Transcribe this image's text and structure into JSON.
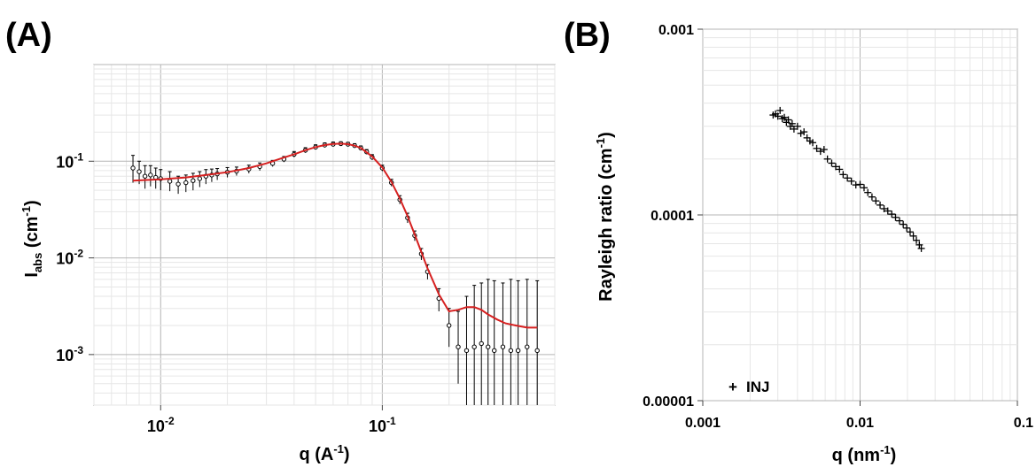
{
  "chart_data": [
    {
      "panel_label": "(A)",
      "type": "scatter",
      "xlabel": "q (A",
      "xlabel_sup": "-1",
      "xlabel_end": ")",
      "ylabel_main": "I",
      "ylabel_sub": "abs",
      "ylabel_unit": " (cm",
      "ylabel_sup": "-1",
      "ylabel_end": ")",
      "x_scale": "log",
      "y_scale": "log",
      "xlim": [
        0.005,
        0.6
      ],
      "ylim": [
        0.0003,
        1
      ],
      "grid": true,
      "x_ticks": [
        {
          "value": 0.01,
          "base": "10",
          "exp": "-2"
        },
        {
          "value": 0.1,
          "base": "10",
          "exp": "-1"
        }
      ],
      "y_ticks": [
        {
          "value": 0.1,
          "base": "10",
          "exp": "-1"
        },
        {
          "value": 0.01,
          "base": "10",
          "exp": "-2"
        },
        {
          "value": 0.001,
          "base": "10",
          "exp": "-3"
        }
      ],
      "series": [
        {
          "kind": "data-with-errorbars",
          "color": "#000000",
          "x": [
            0.0075,
            0.008,
            0.0085,
            0.009,
            0.0095,
            0.01,
            0.011,
            0.012,
            0.013,
            0.014,
            0.015,
            0.016,
            0.017,
            0.018,
            0.02,
            0.022,
            0.025,
            0.028,
            0.032,
            0.036,
            0.04,
            0.045,
            0.05,
            0.055,
            0.06,
            0.065,
            0.07,
            0.075,
            0.08,
            0.085,
            0.09,
            0.1,
            0.11,
            0.12,
            0.13,
            0.14,
            0.15,
            0.16,
            0.18,
            0.2,
            0.22,
            0.24,
            0.26,
            0.28,
            0.3,
            0.32,
            0.35,
            0.38,
            0.41,
            0.45,
            0.5
          ],
          "y": [
            0.085,
            0.078,
            0.07,
            0.072,
            0.068,
            0.066,
            0.062,
            0.058,
            0.06,
            0.063,
            0.066,
            0.07,
            0.072,
            0.074,
            0.077,
            0.079,
            0.083,
            0.088,
            0.095,
            0.105,
            0.118,
            0.13,
            0.14,
            0.147,
            0.15,
            0.152,
            0.15,
            0.145,
            0.137,
            0.125,
            0.11,
            0.085,
            0.06,
            0.04,
            0.026,
            0.017,
            0.011,
            0.0072,
            0.0038,
            0.002,
            0.0012,
            0.0011,
            0.0012,
            0.0013,
            0.0012,
            0.0011,
            0.0012,
            0.0011,
            0.0011,
            0.0012,
            0.0011
          ],
          "err_lo": [
            0.06,
            0.058,
            0.052,
            0.055,
            0.052,
            0.05,
            0.049,
            0.046,
            0.048,
            0.05,
            0.054,
            0.058,
            0.061,
            0.064,
            0.068,
            0.071,
            0.075,
            0.08,
            0.088,
            0.098,
            0.11,
            0.122,
            0.132,
            0.139,
            0.142,
            0.145,
            0.143,
            0.138,
            0.13,
            0.118,
            0.103,
            0.079,
            0.055,
            0.036,
            0.023,
            0.015,
            0.0095,
            0.006,
            0.0028,
            0.0012,
            0.0005,
            0.0003,
            0.0003,
            0.0003,
            0.0003,
            0.0003,
            0.0003,
            0.0003,
            0.0003,
            0.0003,
            0.0003
          ],
          "err_hi": [
            0.115,
            0.1,
            0.09,
            0.09,
            0.085,
            0.082,
            0.078,
            0.07,
            0.072,
            0.075,
            0.078,
            0.082,
            0.083,
            0.084,
            0.086,
            0.087,
            0.091,
            0.096,
            0.102,
            0.112,
            0.126,
            0.138,
            0.148,
            0.155,
            0.158,
            0.159,
            0.157,
            0.152,
            0.144,
            0.132,
            0.117,
            0.091,
            0.065,
            0.044,
            0.029,
            0.019,
            0.0125,
            0.0085,
            0.0048,
            0.003,
            0.0028,
            0.004,
            0.0052,
            0.0055,
            0.006,
            0.0058,
            0.0055,
            0.006,
            0.0058,
            0.006,
            0.0058
          ]
        },
        {
          "kind": "fit-line",
          "color": "#d62020",
          "x": [
            0.0075,
            0.01,
            0.013,
            0.016,
            0.02,
            0.025,
            0.03,
            0.035,
            0.04,
            0.045,
            0.05,
            0.055,
            0.06,
            0.065,
            0.07,
            0.075,
            0.08,
            0.09,
            0.1,
            0.11,
            0.12,
            0.13,
            0.14,
            0.15,
            0.16,
            0.18,
            0.2,
            0.22,
            0.24,
            0.26,
            0.28,
            0.3,
            0.33,
            0.36,
            0.4,
            0.45,
            0.5
          ],
          "y": [
            0.063,
            0.065,
            0.068,
            0.072,
            0.077,
            0.085,
            0.095,
            0.107,
            0.118,
            0.13,
            0.14,
            0.147,
            0.151,
            0.152,
            0.15,
            0.145,
            0.137,
            0.112,
            0.086,
            0.061,
            0.041,
            0.027,
            0.0175,
            0.0115,
            0.0078,
            0.0042,
            0.0028,
            0.0029,
            0.0031,
            0.0031,
            0.0029,
            0.0026,
            0.0023,
            0.0021,
            0.002,
            0.0019,
            0.0019
          ]
        }
      ]
    },
    {
      "panel_label": "(B)",
      "type": "scatter",
      "xlabel": "q (nm",
      "xlabel_sup": "-1",
      "xlabel_end": ")",
      "ylabel": "Rayleigh ratio (cm",
      "ylabel_sup": "-1",
      "ylabel_end": ")",
      "x_scale": "log",
      "y_scale": "log",
      "xlim": [
        0.001,
        0.1
      ],
      "ylim": [
        1e-05,
        0.001
      ],
      "grid": true,
      "x_ticks": [
        {
          "value": 0.001,
          "label": "0.001"
        },
        {
          "value": 0.01,
          "label": "0.01"
        },
        {
          "value": 0.1,
          "label": "0.1"
        }
      ],
      "y_ticks": [
        {
          "value": 0.001,
          "label": "0.001"
        },
        {
          "value": 0.0001,
          "label": "0.0001"
        },
        {
          "value": 1e-05,
          "label": "0.00001"
        }
      ],
      "legend": {
        "marker": "+",
        "label": "INJ",
        "position": "bottom-left"
      },
      "series": [
        {
          "name": "INJ",
          "marker": "+",
          "color": "#000000",
          "x": [
            0.0028,
            0.0029,
            0.003,
            0.0031,
            0.0032,
            0.0033,
            0.0034,
            0.0035,
            0.0036,
            0.0037,
            0.0038,
            0.004,
            0.0042,
            0.0044,
            0.0046,
            0.0048,
            0.005,
            0.0053,
            0.0056,
            0.0059,
            0.0062,
            0.0066,
            0.007,
            0.0074,
            0.0078,
            0.0083,
            0.0088,
            0.0094,
            0.01,
            0.0106,
            0.0112,
            0.0119,
            0.0126,
            0.0134,
            0.0142,
            0.015,
            0.0159,
            0.0168,
            0.0178,
            0.0188,
            0.0198,
            0.0208,
            0.0218,
            0.0228,
            0.0238,
            0.0245
          ],
          "y": [
            0.000345,
            0.00035,
            0.00034,
            0.000365,
            0.00033,
            0.000335,
            0.000315,
            0.000325,
            0.0003,
            0.00031,
            0.00029,
            0.0003,
            0.000275,
            0.00028,
            0.00026,
            0.00025,
            0.000245,
            0.000228,
            0.00022,
            0.000225,
            0.0002,
            0.00019,
            0.000182,
            0.000176,
            0.000165,
            0.000158,
            0.000152,
            0.000145,
            0.000146,
            0.00014,
            0.000132,
            0.000125,
            0.000119,
            0.000113,
            0.000108,
            0.000105,
            0.000101,
            9.7e-05,
            9.3e-05,
            8.9e-05,
            8.5e-05,
            8.1e-05,
            7.7e-05,
            7.3e-05,
            6.9e-05,
            6.6e-05
          ]
        }
      ]
    }
  ]
}
